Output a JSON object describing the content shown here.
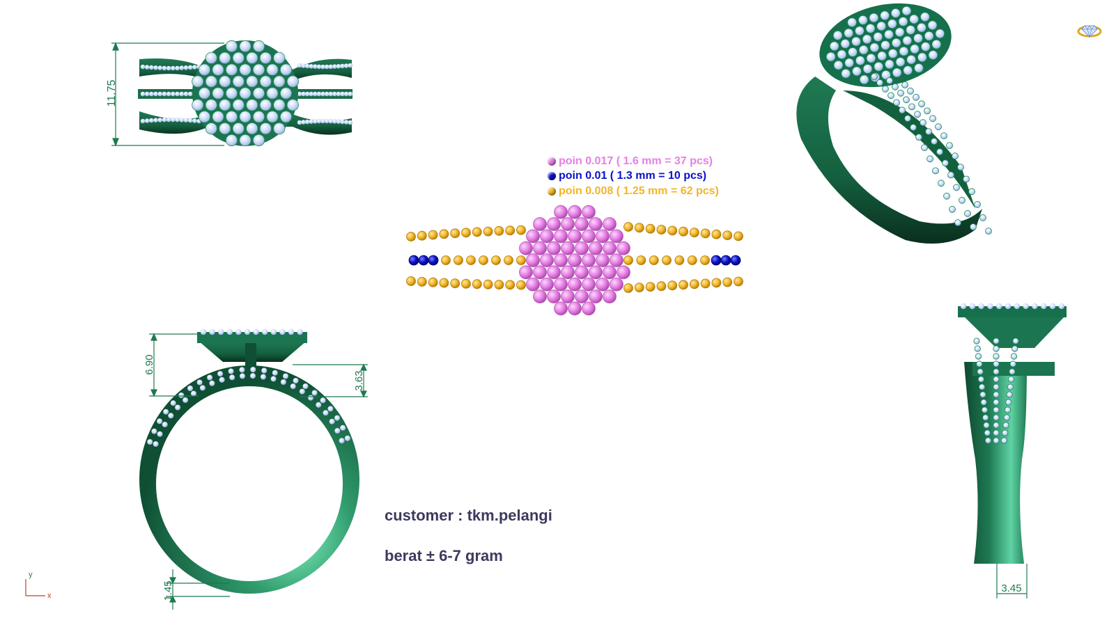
{
  "legend": {
    "items": [
      {
        "label": "poin 0.017 ( 1.6 mm = 37 pcs)",
        "color": "#e77ee6"
      },
      {
        "label": "poin 0.01 ( 1.3 mm = 10 pcs)",
        "color": "#0a10c8"
      },
      {
        "label": "poin 0.008 ( 1.25 mm = 62 pcs)",
        "color": "#f2b526"
      }
    ]
  },
  "info": {
    "customer": "customer : tkm.pelangi",
    "weight": "berat ± 6-7 gram"
  },
  "dimensions": {
    "top_height": "11.75",
    "setting_height": "6.90",
    "head_height": "3.63",
    "band_thickness": "1.45",
    "shank_width": "3.45"
  },
  "axis": {
    "x_label": "x",
    "y_label": "y"
  },
  "colors": {
    "metal": "#1f7a52",
    "metal_dark": "#0e4a30",
    "metal_light": "#5fd3a4",
    "diamond": "#c4d8f7",
    "prong": "#1a8a5c",
    "dimension_line": "#1c7a4e",
    "stone_large": "#e77ee6",
    "stone_medium": "#0a10c8",
    "stone_small": "#f2b526"
  },
  "icons": {
    "corner": "ring-icon"
  }
}
